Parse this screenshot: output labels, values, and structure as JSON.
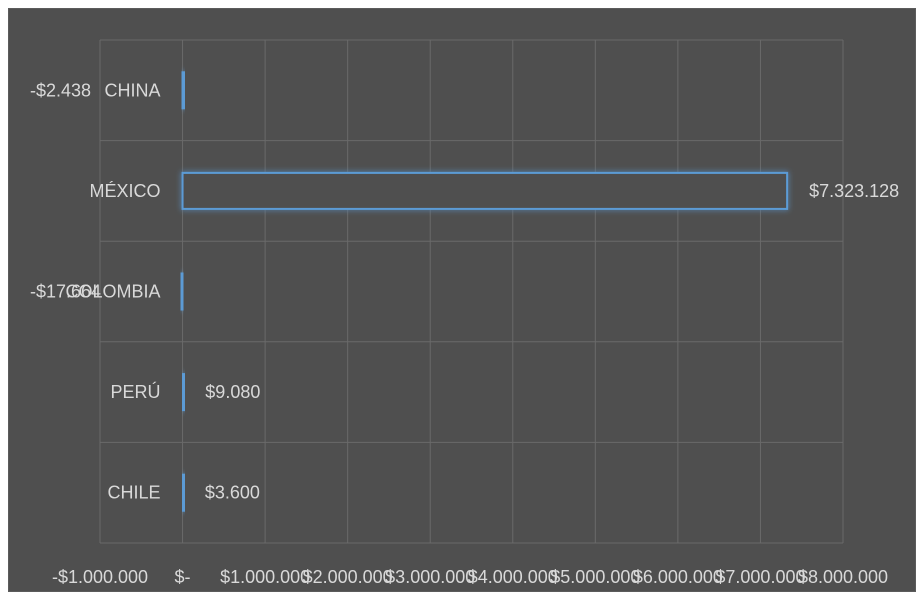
{
  "chart_data": {
    "type": "bar",
    "orientation": "horizontal",
    "title": "",
    "xlabel": "",
    "ylabel": "",
    "categories": [
      "CHINA",
      "MÉXICO",
      "COLOMBIA",
      "PERÚ",
      "CHILE"
    ],
    "values": [
      -2438,
      7323128,
      -17664,
      9080,
      3600
    ],
    "data_labels": [
      "-$2.438",
      "$7.323.128",
      "-$17.664",
      "$9.080",
      "$3.600"
    ],
    "xlim": [
      -1000000,
      8000000
    ],
    "x_ticks": [
      -1000000,
      0,
      1000000,
      2000000,
      3000000,
      4000000,
      5000000,
      6000000,
      7000000,
      8000000
    ],
    "x_tick_labels": [
      "-$1.000.000",
      "$-",
      "$1.000.000",
      "$2.000.000",
      "$3.000.000",
      "$4.000.000",
      "$5.000.000",
      "$6.000.000",
      "$7.000.000",
      "$8.000.000"
    ],
    "grid": true,
    "legend": "none",
    "colors": {
      "background": "#4f4f4f",
      "bar_stroke": "#5b9bd5",
      "bar_fill": "#4f4f4f",
      "text": "#d9d9d9",
      "grid": "#6a6a6a"
    }
  }
}
